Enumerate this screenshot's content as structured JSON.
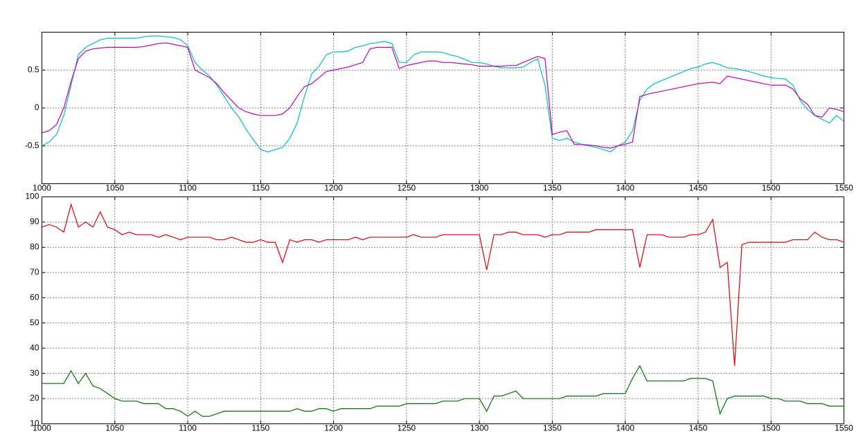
{
  "chart_data": [
    {
      "type": "line",
      "grid": true,
      "xlim": [
        1000,
        1550
      ],
      "ylim": [
        -1,
        1
      ],
      "xticks": [
        1000,
        1050,
        1100,
        1150,
        1200,
        1250,
        1300,
        1350,
        1400,
        1450,
        1500,
        1550
      ],
      "yticks": [
        -0.5,
        0,
        0.5
      ],
      "x": [
        1000,
        1005,
        1010,
        1015,
        1020,
        1025,
        1030,
        1035,
        1040,
        1045,
        1050,
        1055,
        1060,
        1065,
        1070,
        1075,
        1080,
        1085,
        1090,
        1095,
        1100,
        1105,
        1110,
        1115,
        1120,
        1125,
        1130,
        1135,
        1140,
        1145,
        1150,
        1155,
        1160,
        1165,
        1170,
        1175,
        1180,
        1185,
        1190,
        1195,
        1200,
        1205,
        1210,
        1215,
        1220,
        1225,
        1230,
        1235,
        1240,
        1245,
        1250,
        1255,
        1260,
        1265,
        1270,
        1275,
        1280,
        1285,
        1290,
        1295,
        1300,
        1305,
        1310,
        1315,
        1320,
        1325,
        1330,
        1335,
        1340,
        1345,
        1350,
        1355,
        1360,
        1365,
        1370,
        1375,
        1380,
        1385,
        1390,
        1395,
        1400,
        1405,
        1410,
        1415,
        1420,
        1425,
        1430,
        1435,
        1440,
        1445,
        1450,
        1455,
        1460,
        1465,
        1470,
        1475,
        1480,
        1485,
        1490,
        1495,
        1500,
        1505,
        1510,
        1515,
        1520,
        1525,
        1530,
        1535,
        1540,
        1545,
        1550
      ],
      "series": [
        {
          "color": "#00bfbf",
          "values": [
            -0.5,
            -0.45,
            -0.35,
            -0.1,
            0.3,
            0.7,
            0.8,
            0.85,
            0.9,
            0.92,
            0.92,
            0.92,
            0.92,
            0.92,
            0.94,
            0.95,
            0.95,
            0.94,
            0.93,
            0.9,
            0.82,
            0.6,
            0.5,
            0.42,
            0.3,
            0.15,
            0,
            -0.12,
            -0.28,
            -0.42,
            -0.55,
            -0.58,
            -0.55,
            -0.52,
            -0.4,
            -0.2,
            0.15,
            0.45,
            0.55,
            0.7,
            0.74,
            0.74,
            0.75,
            0.8,
            0.82,
            0.85,
            0.86,
            0.88,
            0.85,
            0.6,
            0.6,
            0.7,
            0.74,
            0.74,
            0.74,
            0.73,
            0.7,
            0.68,
            0.64,
            0.6,
            0.6,
            0.58,
            0.55,
            0.53,
            0.53,
            0.53,
            0.54,
            0.6,
            0.65,
            0.3,
            -0.4,
            -0.43,
            -0.4,
            -0.45,
            -0.48,
            -0.5,
            -0.52,
            -0.55,
            -0.58,
            -0.5,
            -0.45,
            -0.3,
            0.1,
            0.25,
            0.32,
            0.36,
            0.4,
            0.44,
            0.48,
            0.52,
            0.54,
            0.58,
            0.6,
            0.57,
            0.53,
            0.52,
            0.5,
            0.48,
            0.45,
            0.42,
            0.4,
            0.39,
            0.38,
            0.3,
            0.1,
            -0.02,
            -0.1,
            -0.15,
            -0.2,
            -0.1,
            -0.18
          ]
        },
        {
          "color": "#bf00bf",
          "values": [
            -0.33,
            -0.3,
            -0.22,
            0,
            0.35,
            0.65,
            0.75,
            0.78,
            0.79,
            0.8,
            0.8,
            0.8,
            0.8,
            0.8,
            0.81,
            0.83,
            0.85,
            0.86,
            0.84,
            0.82,
            0.8,
            0.5,
            0.45,
            0.4,
            0.32,
            0.2,
            0.1,
            0,
            -0.05,
            -0.08,
            -0.1,
            -0.1,
            -0.1,
            -0.08,
            0,
            0.15,
            0.28,
            0.32,
            0.4,
            0.48,
            0.5,
            0.52,
            0.54,
            0.57,
            0.6,
            0.78,
            0.8,
            0.8,
            0.8,
            0.52,
            0.56,
            0.58,
            0.6,
            0.62,
            0.62,
            0.6,
            0.6,
            0.59,
            0.58,
            0.57,
            0.55,
            0.55,
            0.55,
            0.55,
            0.56,
            0.56,
            0.6,
            0.64,
            0.68,
            0.65,
            -0.35,
            -0.32,
            -0.3,
            -0.48,
            -0.48,
            -0.49,
            -0.5,
            -0.52,
            -0.53,
            -0.5,
            -0.48,
            -0.45,
            0.15,
            0.18,
            0.2,
            0.22,
            0.24,
            0.26,
            0.28,
            0.3,
            0.32,
            0.33,
            0.34,
            0.32,
            0.42,
            0.4,
            0.38,
            0.36,
            0.34,
            0.32,
            0.3,
            0.3,
            0.3,
            0.25,
            0.12,
            0.05,
            -0.1,
            -0.12,
            0,
            -0.02,
            -0.05
          ]
        }
      ]
    },
    {
      "type": "line",
      "grid": true,
      "xlim": [
        1000,
        1550
      ],
      "ylim": [
        10,
        100
      ],
      "xticks": [
        1000,
        1050,
        1100,
        1150,
        1200,
        1250,
        1300,
        1350,
        1400,
        1450,
        1500,
        1550
      ],
      "yticks": [
        10,
        20,
        30,
        40,
        50,
        60,
        70,
        80,
        90,
        100
      ],
      "x": [
        1000,
        1005,
        1010,
        1015,
        1020,
        1025,
        1030,
        1035,
        1040,
        1045,
        1050,
        1055,
        1060,
        1065,
        1070,
        1075,
        1080,
        1085,
        1090,
        1095,
        1100,
        1105,
        1110,
        1115,
        1120,
        1125,
        1130,
        1135,
        1140,
        1145,
        1150,
        1155,
        1160,
        1165,
        1170,
        1175,
        1180,
        1185,
        1190,
        1195,
        1200,
        1205,
        1210,
        1215,
        1220,
        1225,
        1230,
        1235,
        1240,
        1245,
        1250,
        1255,
        1260,
        1265,
        1270,
        1275,
        1280,
        1285,
        1290,
        1295,
        1300,
        1305,
        1310,
        1315,
        1320,
        1325,
        1330,
        1335,
        1340,
        1345,
        1350,
        1355,
        1360,
        1365,
        1370,
        1375,
        1380,
        1385,
        1390,
        1395,
        1400,
        1405,
        1410,
        1415,
        1420,
        1425,
        1430,
        1435,
        1440,
        1445,
        1450,
        1455,
        1460,
        1465,
        1470,
        1475,
        1480,
        1485,
        1490,
        1495,
        1500,
        1505,
        1510,
        1515,
        1520,
        1525,
        1530,
        1535,
        1540,
        1545,
        1550
      ],
      "series": [
        {
          "color": "#e00000",
          "values": [
            88,
            89,
            88,
            86,
            97,
            88,
            90,
            88,
            94,
            88,
            87,
            85,
            86,
            85,
            85,
            85,
            84,
            85,
            84,
            83,
            84,
            84,
            84,
            84,
            83,
            83,
            84,
            83,
            82,
            82,
            83,
            82,
            82,
            74,
            83,
            82,
            83,
            83,
            82,
            83,
            83,
            83,
            83,
            84,
            83,
            84,
            84,
            84,
            84,
            84,
            84,
            85,
            84,
            84,
            84,
            85,
            85,
            85,
            85,
            85,
            85,
            71,
            85,
            85,
            86,
            86,
            85,
            85,
            85,
            84,
            85,
            85,
            86,
            86,
            86,
            86,
            87,
            87,
            87,
            87,
            87,
            87,
            72,
            85,
            85,
            85,
            84,
            84,
            84,
            85,
            85,
            86,
            91,
            72,
            74,
            33,
            81,
            82,
            82,
            82,
            82,
            82,
            82,
            83,
            83,
            83,
            86,
            84,
            83,
            83,
            82
          ]
        },
        {
          "color": "#007000",
          "values": [
            26,
            26,
            26,
            26,
            31,
            26,
            30,
            25,
            24,
            22,
            20,
            19,
            19,
            19,
            18,
            18,
            18,
            16,
            16,
            15,
            13,
            15,
            13,
            13,
            14,
            15,
            15,
            15,
            15,
            15,
            15,
            15,
            15,
            15,
            15,
            16,
            15,
            15,
            16,
            16,
            15,
            16,
            16,
            16,
            16,
            16,
            17,
            17,
            17,
            17,
            18,
            18,
            18,
            18,
            18,
            19,
            19,
            19,
            20,
            20,
            20,
            15,
            21,
            21,
            22,
            23,
            20,
            20,
            20,
            20,
            20,
            20,
            21,
            21,
            21,
            21,
            21,
            22,
            22,
            22,
            22,
            28,
            33,
            27,
            27,
            27,
            27,
            27,
            27,
            28,
            28,
            28,
            27,
            14,
            20,
            21,
            21,
            21,
            21,
            21,
            20,
            20,
            19,
            19,
            19,
            18,
            18,
            18,
            17,
            17,
            17
          ]
        }
      ]
    }
  ]
}
